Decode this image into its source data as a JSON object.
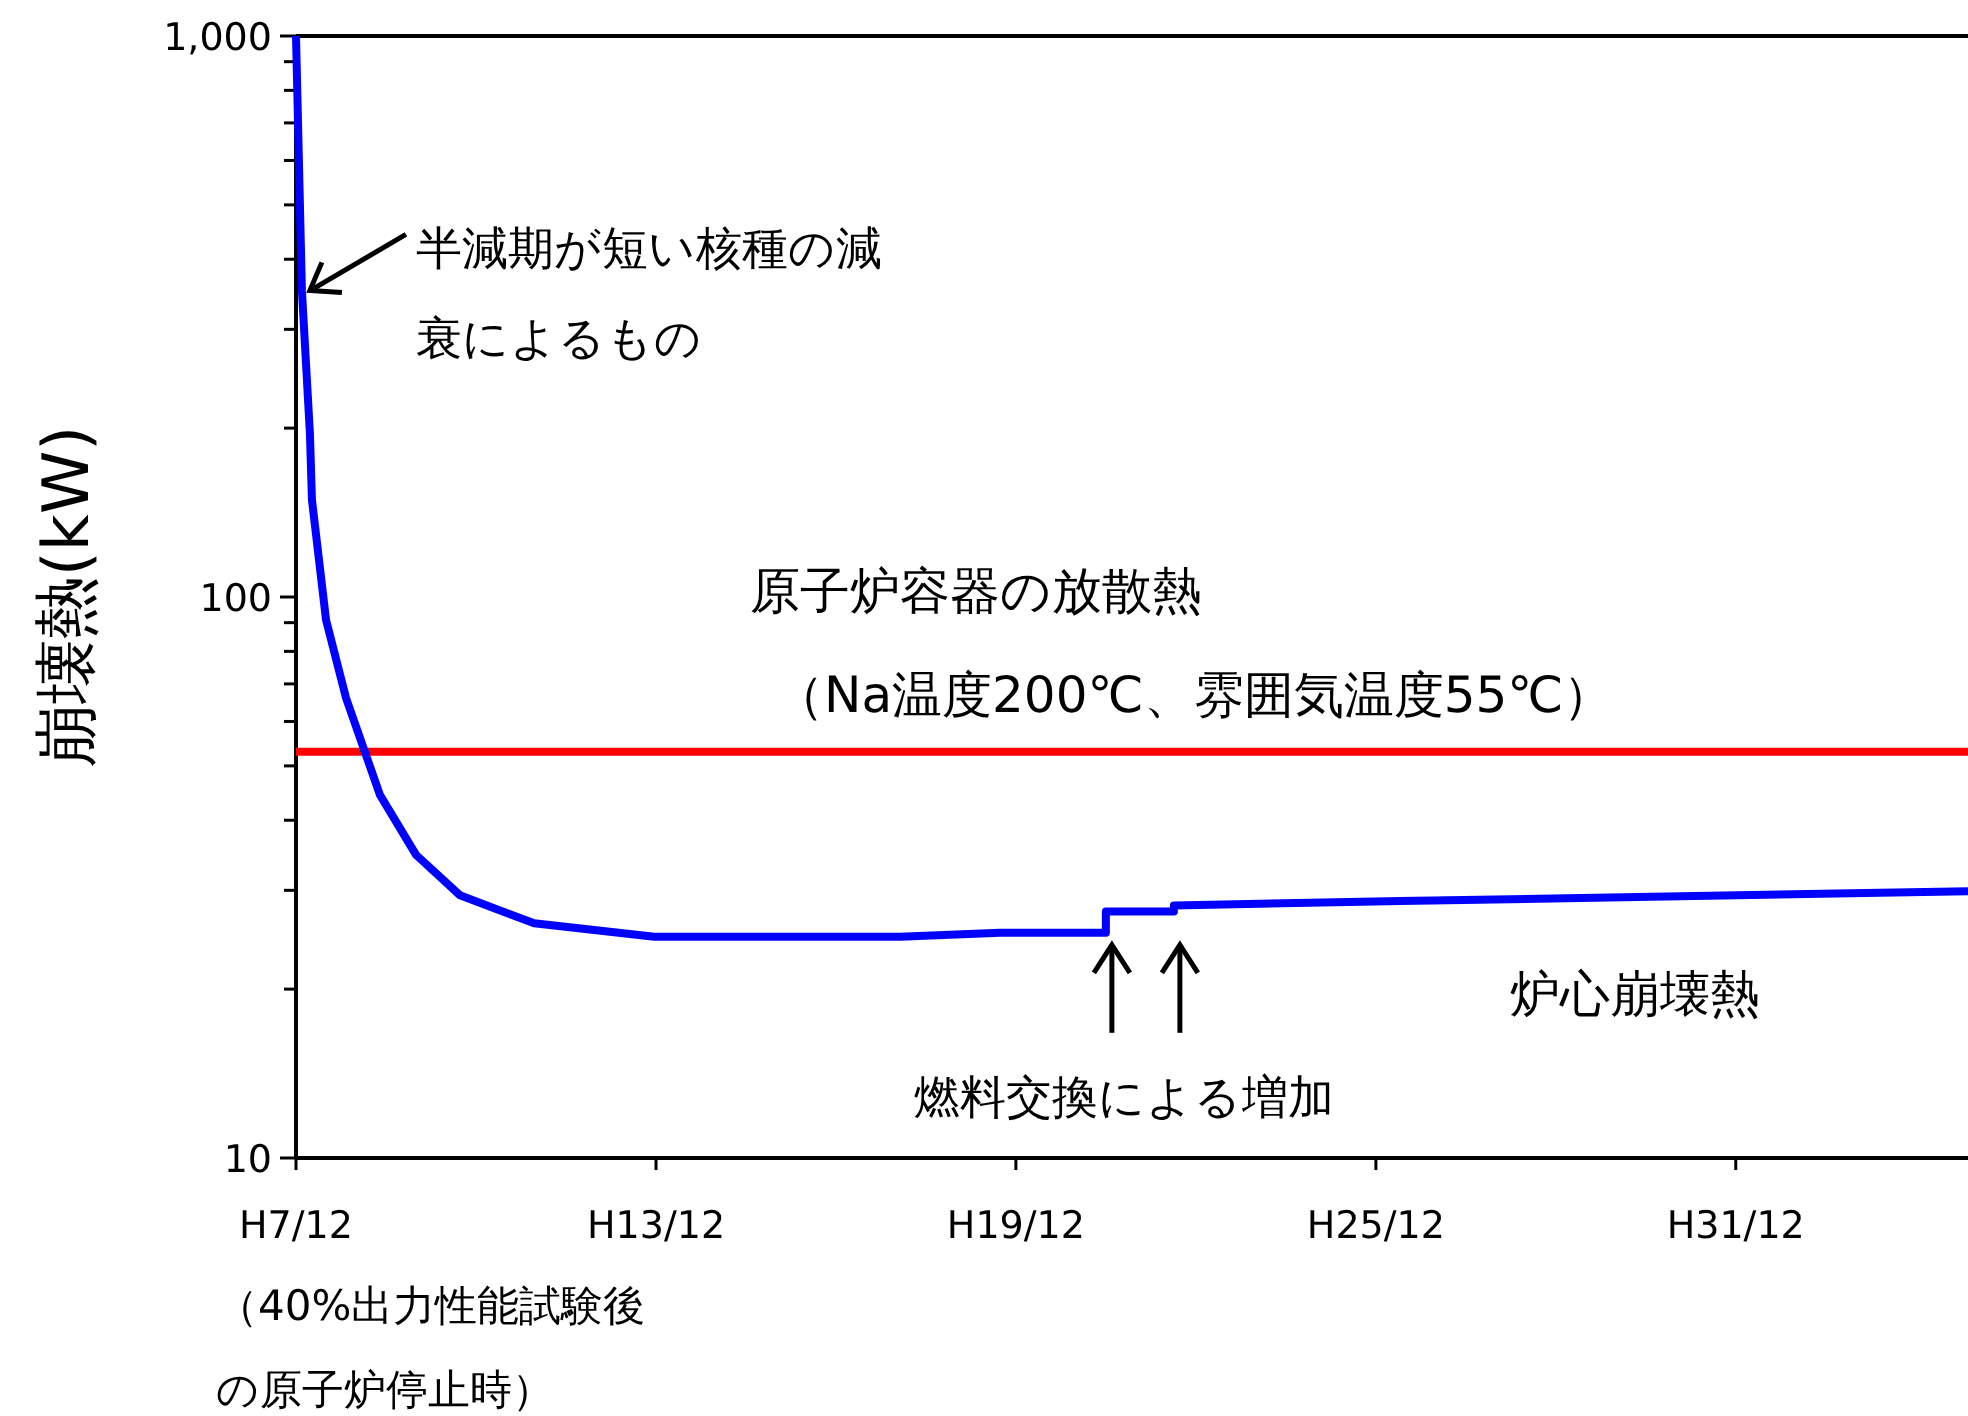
{
  "chart_data": {
    "type": "line",
    "ylabel": "崩壊熱(kW)",
    "log": "y",
    "x": [
      "1995-12-01",
      "1996-01-06",
      "1996-02-24",
      "1996-03-07",
      "1996-06-01",
      "1996-10-01",
      "1997-04-25",
      "1997-12-01",
      "1998-08-25",
      "1999-11-20",
      "2001-11-20",
      "2005-12-25",
      "2007-08-25",
      "2009-06-01",
      "2009-06-01",
      "2010-07-20",
      "2010-07-20",
      "2014-05-01",
      "2023-10-15"
    ],
    "series": [
      {
        "name": "炉心崩壊熱",
        "color": "#0000ff",
        "values": [
          1000,
          352,
          195,
          149,
          91,
          66,
          44.4,
          34.7,
          29.4,
          26.2,
          24.8,
          24.8,
          25.2,
          25.2,
          27.5,
          27.5,
          28.2,
          28.7,
          29.9
        ]
      }
    ],
    "xlim": [
      "1995-12-01",
      "2023-10-15"
    ],
    "xticks": [
      {
        "value": "1995-12",
        "label": "H7/12"
      },
      {
        "value": "2001-12",
        "label": "H13/12"
      },
      {
        "value": "2007-12",
        "label": "H19/12"
      },
      {
        "value": "2013-12",
        "label": "H25/12"
      },
      {
        "value": "2019-12",
        "label": "H31/12"
      }
    ],
    "ylim": [
      10,
      1000
    ],
    "yticks": [
      {
        "value": 10,
        "label": "10"
      },
      {
        "value": 20,
        "label": null
      },
      {
        "value": 30,
        "label": null
      },
      {
        "value": 40,
        "label": null
      },
      {
        "value": 50,
        "label": null
      },
      {
        "value": 60,
        "label": null
      },
      {
        "value": 70,
        "label": null
      },
      {
        "value": 80,
        "label": null
      },
      {
        "value": 90,
        "label": null
      },
      {
        "value": 100,
        "label": "100"
      },
      {
        "value": 200,
        "label": null
      },
      {
        "value": 300,
        "label": null
      },
      {
        "value": 400,
        "label": null
      },
      {
        "value": 500,
        "label": null
      },
      {
        "value": 600,
        "label": null
      },
      {
        "value": 700,
        "label": null
      },
      {
        "value": 800,
        "label": null
      },
      {
        "value": 900,
        "label": null
      },
      {
        "value": 1000,
        "label": "1,000"
      }
    ],
    "ref_lines": [
      {
        "axis": "y",
        "value": 53,
        "label": "原子炉容器の放散熱（Na温度200℃、雰囲気温度55℃）",
        "color": "#ff0000"
      }
    ],
    "annotations": [
      {
        "text": "半減期が短い核種の減衰によるもの",
        "x": "1996-01-06",
        "y": 352
      },
      {
        "text": "燃料交換による増加",
        "x": "2009-06-01",
        "y": 25.2
      },
      "（40%出力性能試験後の原子炉停止時）"
    ],
    "grid": false
  }
}
